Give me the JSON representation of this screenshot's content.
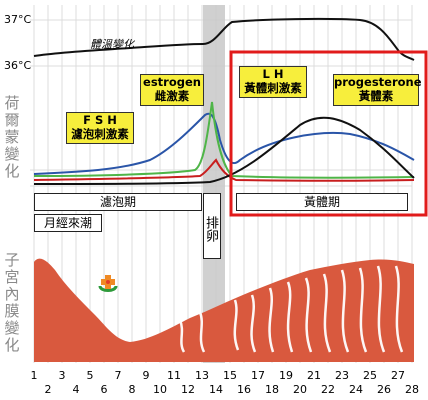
{
  "y_axis": {
    "temp_high": "37°C",
    "temp_low": "36°C"
  },
  "side_labels": {
    "hormone": "荷爾蒙變化",
    "uterus": "子宮內膜變化"
  },
  "temperature_label": "體溫變化",
  "hormone_labels": {
    "fsh": {
      "line1": "F S H",
      "line2": "濾泡刺激素"
    },
    "estrogen": {
      "line1": "estrogen",
      "line2": "雌激素"
    },
    "lh": {
      "line1": "L H",
      "line2": "黃體刺激素"
    },
    "progesterone": {
      "line1": "progesterone",
      "line2": "黃體素"
    }
  },
  "phases": {
    "follicular": "濾泡期",
    "ovulation": "排卵",
    "luteal": "黃體期",
    "menstruation": "月經來潮"
  },
  "days": [
    "1",
    "2",
    "3",
    "4",
    "5",
    "6",
    "7",
    "8",
    "9",
    "10",
    "11",
    "12",
    "13",
    "14",
    "15",
    "16",
    "17",
    "18",
    "19",
    "20",
    "21",
    "22",
    "23",
    "24",
    "25",
    "26",
    "27",
    "28"
  ],
  "colors": {
    "fsh": "#c81e1e",
    "estrogen": "#2a55a8",
    "lh": "#4fb548",
    "progesterone": "#111111",
    "endometrium": "#d9593e",
    "highlight": "#e11b1b",
    "ovulation_band": "#c8c8c8",
    "label_box": "#f7ee3c"
  },
  "icons": [
    "medical-cross-logo-icon"
  ]
}
